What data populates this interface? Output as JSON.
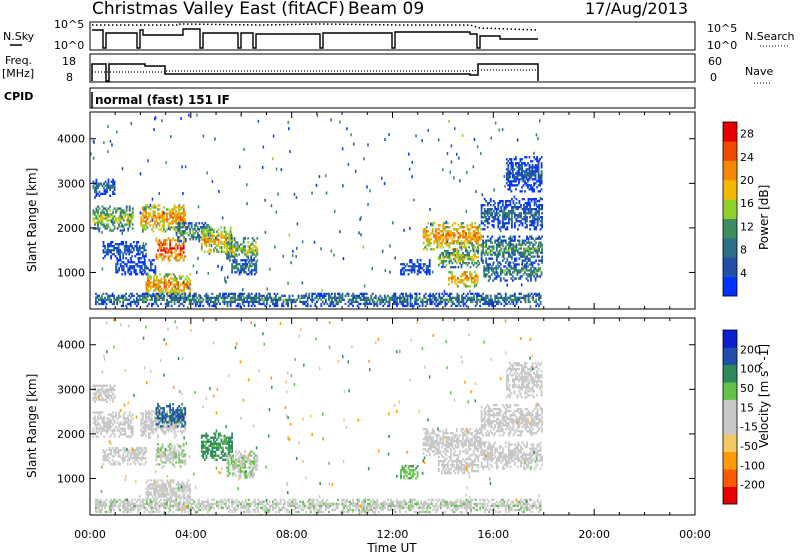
{
  "header": {
    "station": "Christmas Valley East (fitACF)",
    "beam": "Beam 09",
    "date": "17/Aug/2013"
  },
  "strip_labels": {
    "nsky": "N.Sky",
    "nsky_ticks": [
      "10^5",
      "10^0"
    ],
    "nsearch": "N.Search",
    "nsearch_ticks": [
      "10^5",
      "10^0"
    ],
    "freq_line1": "Freq.",
    "freq_line2": "[MHz]",
    "freq_ticks": [
      "18",
      "8"
    ],
    "nave": "Nave",
    "nave_ticks": [
      "60",
      "0"
    ],
    "cpid": "CPID",
    "cpid_text": "normal (fast) 151 IF"
  },
  "colors": {
    "power_scale": [
      "#0033ff",
      "#1f4fa8",
      "#2e6f88",
      "#3c8f5c",
      "#8fd12a",
      "#f5b700",
      "#f58a00",
      "#f04a00",
      "#e60000"
    ],
    "velocity_scale": [
      "#e60000",
      "#ff5a00",
      "#ff9a00",
      "#f5c860",
      "#c8c8c8",
      "#c8c8c8",
      "#63c24a",
      "#2e8a5a",
      "#1f4fa8",
      "#0a1fd0"
    ],
    "ground_scatter": "#c8c8c8"
  },
  "chart_data": [
    {
      "type": "heatmap",
      "title": "",
      "xlabel": "Time UT",
      "ylabel": "Slant Range [km]",
      "x_ticks": [
        "00:00",
        "04:00",
        "08:00",
        "12:00",
        "16:00",
        "20:00",
        "00:00"
      ],
      "x_range_hours": [
        0,
        24
      ],
      "y_ticks": [
        1000,
        2000,
        3000,
        4000
      ],
      "ylim": [
        180,
        4600
      ],
      "colorbar": {
        "label": "Power [dB]",
        "ticks": [
          4,
          8,
          12,
          16,
          20,
          24,
          28
        ],
        "range": [
          0,
          30
        ]
      },
      "data_end_hour": 17.9,
      "bands": [
        {
          "t0": 0.1,
          "t1": 1.7,
          "r": 2200,
          "w": 280,
          "v": 16
        },
        {
          "t0": 0.1,
          "t1": 1.0,
          "r": 2900,
          "w": 200,
          "v": 8
        },
        {
          "t0": 0.5,
          "t1": 2.2,
          "r": 1500,
          "w": 200,
          "v": 8
        },
        {
          "t0": 1.0,
          "t1": 2.6,
          "r": 1100,
          "w": 160,
          "v": 6
        },
        {
          "t0": 2.0,
          "t1": 3.8,
          "r": 2200,
          "w": 300,
          "v": 22
        },
        {
          "t0": 2.6,
          "t1": 3.8,
          "r": 1500,
          "w": 250,
          "v": 26
        },
        {
          "t0": 3.4,
          "t1": 4.8,
          "r": 1900,
          "w": 220,
          "v": 12
        },
        {
          "t0": 2.2,
          "t1": 4.0,
          "r": 700,
          "w": 260,
          "v": 22
        },
        {
          "t0": 4.4,
          "t1": 5.6,
          "r": 1700,
          "w": 300,
          "v": 20
        },
        {
          "t0": 5.4,
          "t1": 6.6,
          "r": 1500,
          "w": 250,
          "v": 16
        },
        {
          "t0": 5.6,
          "t1": 6.6,
          "r": 1100,
          "w": 160,
          "v": 10
        },
        {
          "t0": 0.2,
          "t1": 17.9,
          "r": 380,
          "w": 150,
          "v": 10
        },
        {
          "t0": 12.3,
          "t1": 13.5,
          "r": 1100,
          "w": 160,
          "v": 6
        },
        {
          "t0": 13.2,
          "t1": 15.5,
          "r": 1800,
          "w": 300,
          "v": 22
        },
        {
          "t0": 13.8,
          "t1": 15.4,
          "r": 1300,
          "w": 200,
          "v": 16
        },
        {
          "t0": 14.2,
          "t1": 15.4,
          "r": 850,
          "w": 180,
          "v": 22
        },
        {
          "t0": 15.5,
          "t1": 17.9,
          "r": 2300,
          "w": 350,
          "v": 8
        },
        {
          "t0": 15.5,
          "t1": 17.9,
          "r": 1500,
          "w": 300,
          "v": 12
        },
        {
          "t0": 15.6,
          "t1": 17.9,
          "r": 1000,
          "w": 200,
          "v": 12
        },
        {
          "t0": 16.5,
          "t1": 17.9,
          "r": 3200,
          "w": 400,
          "v": 6
        }
      ]
    },
    {
      "type": "heatmap",
      "title": "",
      "xlabel": "Time UT",
      "ylabel": "Slant Range [km]",
      "x_ticks": [
        "00:00",
        "04:00",
        "08:00",
        "12:00",
        "16:00",
        "20:00",
        "00:00"
      ],
      "x_range_hours": [
        0,
        24
      ],
      "y_ticks": [
        1000,
        2000,
        3000,
        4000
      ],
      "ylim": [
        180,
        4600
      ],
      "colorbar": {
        "label": "Velocity [m s^-1]",
        "ticks": [
          -200,
          -100,
          -50,
          -15,
          15,
          50,
          100,
          200
        ],
        "range": [
          -250,
          250
        ]
      },
      "data_end_hour": 17.9,
      "bands": [
        {
          "t0": 0.1,
          "t1": 1.7,
          "r": 2200,
          "w": 280,
          "v": 0
        },
        {
          "t0": 0.1,
          "t1": 1.0,
          "r": 2900,
          "w": 200,
          "v": 0
        },
        {
          "t0": 0.5,
          "t1": 2.2,
          "r": 1500,
          "w": 200,
          "v": 0
        },
        {
          "t0": 2.0,
          "t1": 3.8,
          "r": 2200,
          "w": 300,
          "v": 0
        },
        {
          "t0": 2.6,
          "t1": 3.8,
          "r": 2400,
          "w": 250,
          "v": 160
        },
        {
          "t0": 2.6,
          "t1": 3.8,
          "r": 1500,
          "w": 250,
          "v": 40
        },
        {
          "t0": 2.2,
          "t1": 4.0,
          "r": 700,
          "w": 260,
          "v": 0
        },
        {
          "t0": 4.4,
          "t1": 5.6,
          "r": 1700,
          "w": 300,
          "v": 120
        },
        {
          "t0": 5.4,
          "t1": 6.6,
          "r": 1300,
          "w": 300,
          "v": 40
        },
        {
          "t0": 0.2,
          "t1": 17.9,
          "r": 380,
          "w": 150,
          "v": 30
        },
        {
          "t0": 12.3,
          "t1": 13.0,
          "r": 1100,
          "w": 160,
          "v": 80
        },
        {
          "t0": 13.2,
          "t1": 15.5,
          "r": 1800,
          "w": 300,
          "v": 0
        },
        {
          "t0": 13.8,
          "t1": 15.4,
          "r": 1300,
          "w": 200,
          "v": 0
        },
        {
          "t0": 15.5,
          "t1": 17.9,
          "r": 2300,
          "w": 350,
          "v": 0
        },
        {
          "t0": 15.5,
          "t1": 17.9,
          "r": 1500,
          "w": 300,
          "v": 0
        },
        {
          "t0": 16.5,
          "t1": 17.9,
          "r": 3200,
          "w": 400,
          "v": 0
        }
      ]
    }
  ]
}
